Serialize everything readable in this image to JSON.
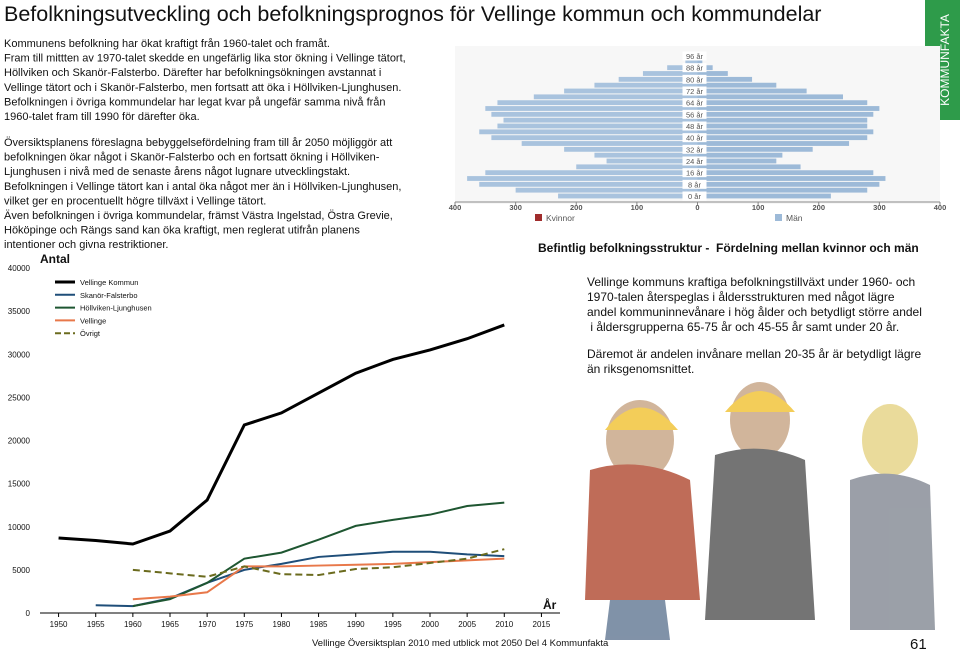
{
  "header": {
    "title": "Befolkningsutveckling och befolkningsprognos för Vellinge kommun och kommundelar"
  },
  "side_tab": "KOMMUNFAKTA",
  "intro": {
    "lines": [
      "Kommunens befolkning har ökat kraftigt från 1960-talet och framåt.",
      "Fram till mittten av 1970-talet skedde en ungefärlig lika stor ökning i Vellinge tätort,",
      "Höllviken och Skanör-Falsterbo. Därefter har befolkningsökningen avstannat i",
      "Vellinge tätort och i Skanör-Falsterbo, men fortsatt att öka i Höllviken-Ljunghusen.",
      "Befolkningen i övriga kommundelar har legat kvar på ungefär samma nivå från",
      "1960-talet fram till 1990 för därefter öka."
    ]
  },
  "plan_text": {
    "lines": [
      "Översiktsplanens föreslagna bebyggelsefördelning fram till år 2050 möjliggör att",
      "befolkningen ökar något i Skanör-Falsterbo och en fortsatt ökning i Höllviken-",
      "Ljunghusen i nivå med de senaste årens något lugnare utvecklingstakt.",
      "Befolkningen i Vellinge tätort kan i antal öka något mer än i Höllviken-Ljunghusen,",
      "vilket ger en procentuellt högre tillväxt i Vellinge tätort.",
      "Även befolkningen i övriga kommundelar, främst Västra Ingelstad, Östra Grevie,",
      "Hököpinge och Rängs sand kan öka kraftigt, men reglerat utifrån planens",
      "intentioner och givna restriktioner."
    ]
  },
  "structure": {
    "heading": "Befintlig befolkningsstruktur -  Fördelning mellan kvinnor och män",
    "paragraph1": [
      "Vellinge kommuns kraftiga befolkningstillväxt under 1960- och",
      "1970-talen återspeglas i åldersstrukturen med något lägre",
      "andel kommuninnevånare i hög ålder och betydligt större andel",
      " i åldersgrupperna 65-75 år och 45-55 år samt under 20 år."
    ],
    "paragraph2": [
      "Däremot är andelen invånare mellan 20-35 år är betydligt lägre",
      "än riksgenomsnittet."
    ]
  },
  "chart_data": [
    {
      "type": "line",
      "y_label": "Antal",
      "x_label": "År",
      "x": [
        1950,
        1955,
        1960,
        1965,
        1970,
        1975,
        1980,
        1985,
        1990,
        1995,
        2000,
        2005,
        2010
      ],
      "xlim": [
        1947.5,
        2017.5
      ],
      "xticks": [
        1950,
        1955,
        1960,
        1965,
        1970,
        1975,
        1980,
        1985,
        1990,
        1995,
        2000,
        2005,
        2010,
        2015
      ],
      "ylim": [
        0,
        40000
      ],
      "yticks": [
        0,
        5000,
        10000,
        15000,
        20000,
        25000,
        30000,
        35000,
        40000
      ],
      "series": [
        {
          "name": "Vellinge Kommun",
          "color": "#000000",
          "width": 3,
          "values": [
            8700,
            8400,
            8000,
            9500,
            13100,
            21800,
            23200,
            25500,
            27800,
            29400,
            30500,
            31800,
            33400
          ]
        },
        {
          "name": "Skanör-Falsterbo",
          "color": "#1f4e79",
          "width": 2,
          "values": [
            null,
            900,
            800,
            1700,
            3500,
            5000,
            5700,
            6500,
            6800,
            7100,
            7100,
            6800,
            6600
          ]
        },
        {
          "name": "Höllviken-Ljunghusen",
          "color": "#1e5631",
          "width": 2,
          "values": [
            null,
            null,
            800,
            1600,
            3500,
            6300,
            7000,
            8500,
            10100,
            10800,
            11400,
            12400,
            12800
          ]
        },
        {
          "name": "Vellinge",
          "color": "#e8784a",
          "width": 2,
          "values": [
            null,
            null,
            1600,
            1900,
            2400,
            5400,
            5400,
            5500,
            5600,
            5700,
            5900,
            6100,
            6300
          ]
        },
        {
          "name": "Övrigt",
          "color": "#6b6b1e",
          "width": 2,
          "dashed": true,
          "values": [
            null,
            null,
            5000,
            4600,
            4200,
            5400,
            4500,
            4400,
            5100,
            5300,
            5800,
            6300,
            7400
          ]
        }
      ]
    },
    {
      "type": "pyramid",
      "categories": [
        "0 år",
        null,
        "8 år",
        null,
        "16 år",
        null,
        "24 år",
        null,
        "32 år",
        null,
        "40 år",
        null,
        "48 år",
        null,
        "56 år",
        null,
        "64 år",
        null,
        "72 år",
        null,
        "80 år",
        null,
        "88 år",
        null,
        "96 år"
      ],
      "xlim": [
        -400,
        400
      ],
      "xticks": [
        {
          "value": -400,
          "label": "400"
        },
        {
          "value": -300,
          "label": "300"
        },
        {
          "value": -200,
          "label": "200"
        },
        {
          "value": -100,
          "label": "100"
        },
        0,
        100,
        200,
        300,
        400
      ],
      "legend": "bottom",
      "series": [
        {
          "name": "Kvinnor",
          "color": "#a9c3de",
          "legend_color": "#a02c2c",
          "values": [
            -230,
            -300,
            -360,
            -380,
            -350,
            -200,
            -150,
            -170,
            -220,
            -290,
            -340,
            -360,
            -330,
            -320,
            -340,
            -350,
            -330,
            -270,
            -220,
            -170,
            -130,
            -90,
            -50,
            -20,
            -5
          ]
        },
        {
          "name": "Män",
          "color": "#9dbad8",
          "legend_color": "#9dbad8",
          "values": [
            220,
            280,
            300,
            310,
            290,
            170,
            130,
            140,
            190,
            250,
            280,
            290,
            280,
            280,
            290,
            300,
            280,
            240,
            180,
            130,
            90,
            50,
            25,
            8,
            2
          ]
        }
      ]
    }
  ],
  "footer": {
    "text": "Vellinge Översiktsplan 2010 med utblick mot 2050 Del 4 Kommunfakta",
    "page_number": "61"
  }
}
